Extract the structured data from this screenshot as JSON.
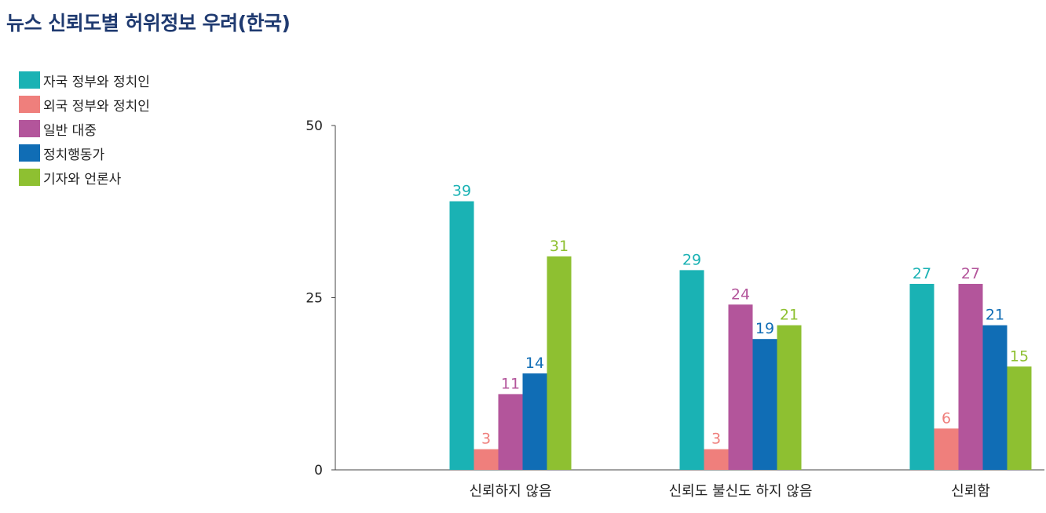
{
  "chart_data": {
    "type": "bar",
    "title": "뉴스 신뢰도별 허위정보 우려(한국)",
    "categories": [
      "신뢰하지 않음",
      "신뢰도 불신도 하지 않음",
      "신뢰함"
    ],
    "series": [
      {
        "name": "자국 정부와 정치인",
        "color": "#1ab2b4",
        "values": [
          39,
          29,
          27
        ]
      },
      {
        "name": "외국 정부와 정치인",
        "color": "#ef7f7c",
        "values": [
          3,
          3,
          6
        ]
      },
      {
        "name": "일반 대중",
        "color": "#b3559b",
        "values": [
          11,
          24,
          27
        ]
      },
      {
        "name": "정치행동가",
        "color": "#106db5",
        "values": [
          14,
          19,
          21
        ]
      },
      {
        "name": "기자와 언론사",
        "color": "#8ec031",
        "values": [
          31,
          21,
          15
        ]
      }
    ],
    "yticks": [
      0,
      25,
      50
    ],
    "ylim": [
      0,
      50
    ],
    "xlabel": "",
    "ylabel": "",
    "legend_position": "top-left",
    "grid": false
  }
}
